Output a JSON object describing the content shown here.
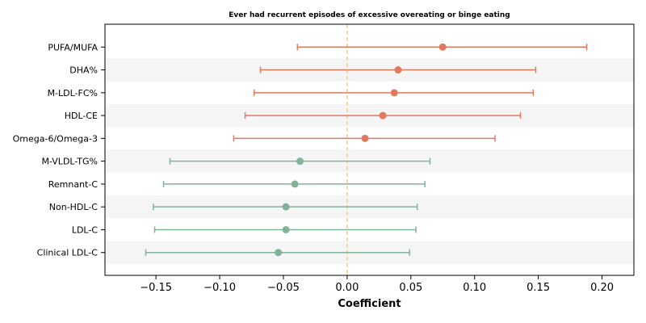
{
  "chart_data": {
    "type": "forest",
    "title": "Ever had recurrent episodes of excessive overeating or binge eating",
    "xlabel": "Coefficient",
    "ylabel": "",
    "xlim": [
      -0.19,
      0.225
    ],
    "xticks": [
      -0.15,
      -0.1,
      -0.05,
      0.0,
      0.05,
      0.1,
      0.15,
      0.2
    ],
    "xtick_labels": [
      "−0.15",
      "−0.10",
      "−0.05",
      "0.00",
      "0.05",
      "0.10",
      "0.15",
      "0.20"
    ],
    "reference_line": 0,
    "grid": false,
    "row_banding": true,
    "colors": {
      "positive": "#E07A5F",
      "negative": "#81B29A",
      "reference": "#F2CC8F",
      "band": "#F5F5F5",
      "axis": "#000000"
    },
    "items": [
      {
        "label": "PUFA/MUFA",
        "coef": 0.075,
        "lower": -0.039,
        "upper": 0.188
      },
      {
        "label": "DHA%",
        "coef": 0.04,
        "lower": -0.068,
        "upper": 0.148
      },
      {
        "label": "M-LDL-FC%",
        "coef": 0.037,
        "lower": -0.073,
        "upper": 0.146
      },
      {
        "label": "HDL-CE",
        "coef": 0.028,
        "lower": -0.08,
        "upper": 0.136
      },
      {
        "label": "Omega-6/Omega-3",
        "coef": 0.014,
        "lower": -0.089,
        "upper": 0.116
      },
      {
        "label": "M-VLDL-TG%",
        "coef": -0.037,
        "lower": -0.139,
        "upper": 0.065
      },
      {
        "label": "Remnant-C",
        "coef": -0.041,
        "lower": -0.144,
        "upper": 0.061
      },
      {
        "label": "Non-HDL-C",
        "coef": -0.048,
        "lower": -0.152,
        "upper": 0.055
      },
      {
        "label": "LDL-C",
        "coef": -0.048,
        "lower": -0.151,
        "upper": 0.054
      },
      {
        "label": "Clinical LDL-C",
        "coef": -0.054,
        "lower": -0.158,
        "upper": 0.049
      }
    ]
  }
}
